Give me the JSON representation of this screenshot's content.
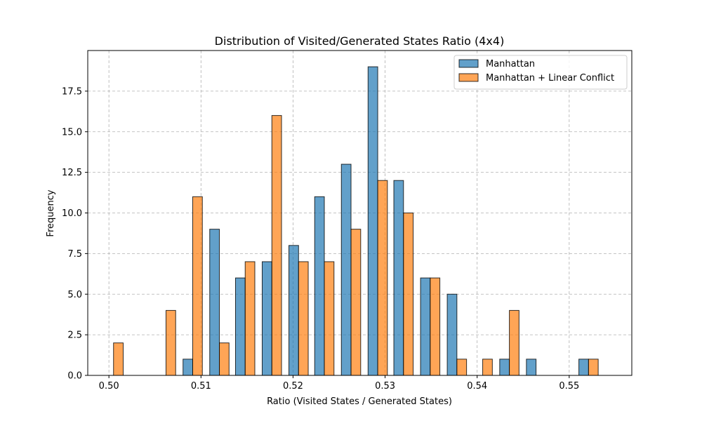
{
  "chart_data": {
    "type": "bar",
    "title": "Distribution of Visited/Generated States Ratio (4x4)",
    "xlabel": "Ratio (Visited States / Generated States)",
    "ylabel": "Frequency",
    "xlim": [
      0.4977,
      0.5568
    ],
    "ylim": [
      0,
      20
    ],
    "x_ticks": [
      0.5,
      0.51,
      0.52,
      0.53,
      0.54,
      0.55
    ],
    "x_tick_labels": [
      "0.50",
      "0.51",
      "0.52",
      "0.53",
      "0.54",
      "0.55"
    ],
    "y_ticks": [
      0,
      2.5,
      5,
      7.5,
      10,
      12.5,
      15,
      17.5
    ],
    "y_tick_labels": [
      "0.0",
      "2.5",
      "5.0",
      "7.5",
      "10.0",
      "12.5",
      "15.0",
      "17.5"
    ],
    "grid": true,
    "legend_position": "top-right",
    "bar_width": 0.00105,
    "x": [
      0.5005,
      0.5034,
      0.5062,
      0.5091,
      0.512,
      0.5148,
      0.5177,
      0.5206,
      0.5234,
      0.5263,
      0.5292,
      0.532,
      0.5349,
      0.5378,
      0.5406,
      0.5435,
      0.5464,
      0.5492,
      0.5521
    ],
    "series": [
      {
        "name": "Manhattan",
        "color": "#1f77b4",
        "values": [
          0,
          0,
          0,
          1,
          9,
          6,
          7,
          8,
          11,
          13,
          19,
          12,
          6,
          5,
          0,
          1,
          1,
          0,
          1
        ]
      },
      {
        "name": "Manhattan + Linear Conflict",
        "color": "#ff7f0e",
        "values": [
          2,
          0,
          4,
          11,
          2,
          7,
          16,
          7,
          7,
          9,
          12,
          10,
          6,
          1,
          1,
          4,
          0,
          0,
          1
        ]
      }
    ]
  }
}
